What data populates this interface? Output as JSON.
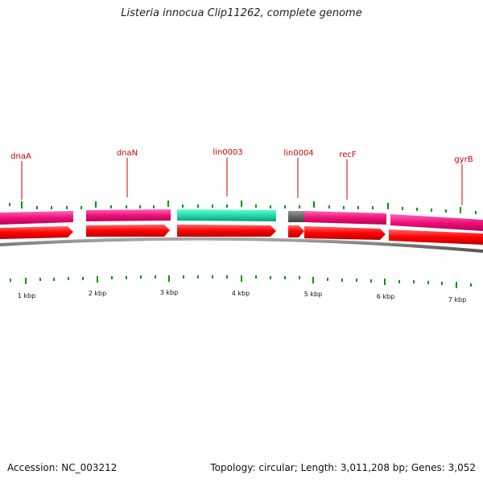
{
  "title": "Listeria innocua Clip11262, complete genome",
  "accession": "Accession: NC_003212",
  "summary": "Topology: circular; Length: 3,011,208 bp; Genes: 3,052",
  "gene_labels": [
    "dnaA",
    "dnaN",
    "lin0003",
    "lin0004",
    "recF",
    "gyrB"
  ],
  "scale_labels": [
    "1 kbp",
    "2 kbp",
    "3 kbp",
    "4 kbp",
    "5 kbp",
    "6 kbp",
    "7 kbp"
  ],
  "colors": {
    "label_red": "#cc0000",
    "cds_red": "#ff0000",
    "gene_magenta": "#ee1177",
    "gene_teal": "#22ddaa",
    "gene_gray": "#666666",
    "tick_green": "#009900",
    "backbone_gray": "#777777"
  }
}
